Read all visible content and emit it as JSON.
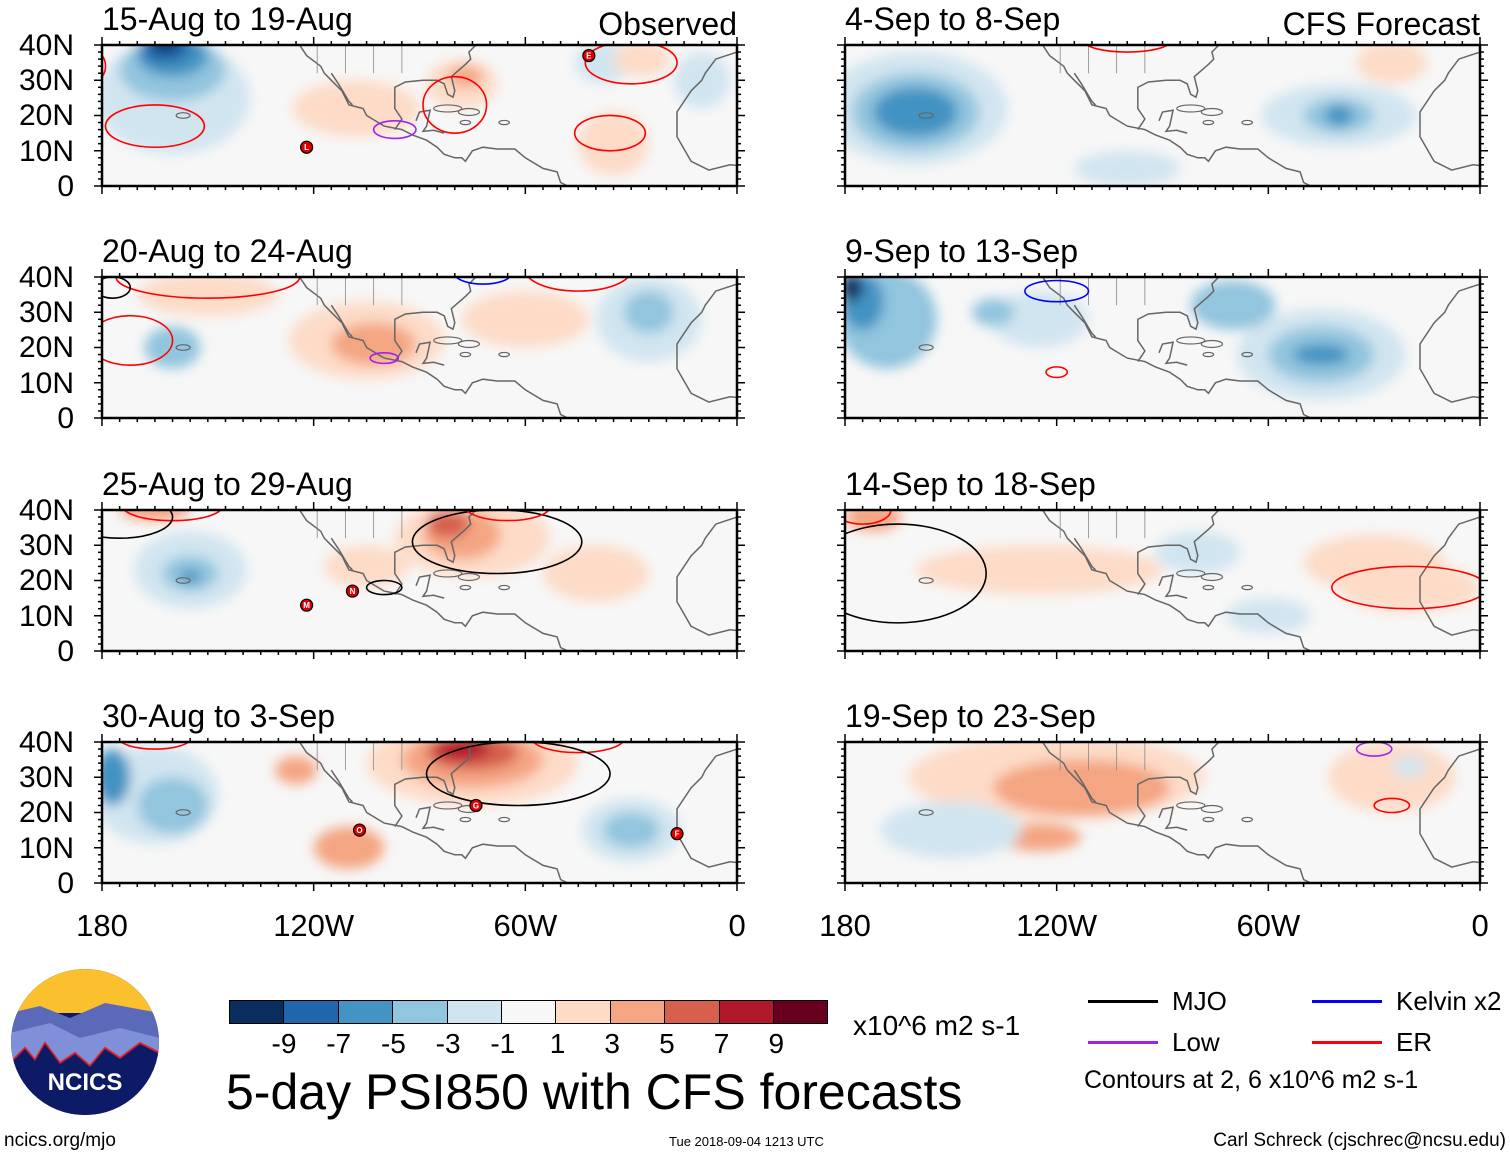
{
  "panels": [
    {
      "title": "15-Aug to 19-Aug",
      "tag": "Observed",
      "storms": [
        "L",
        "E"
      ]
    },
    {
      "title": "20-Aug to 24-Aug",
      "tag": "",
      "storms": []
    },
    {
      "title": "25-Aug to 29-Aug",
      "tag": "",
      "storms": [
        "M",
        "N"
      ]
    },
    {
      "title": "30-Aug to 3-Sep",
      "tag": "",
      "storms": [
        "O",
        "G",
        "F"
      ]
    },
    {
      "title": "4-Sep to 8-Sep",
      "tag": "CFS Forecast",
      "storms": []
    },
    {
      "title": "9-Sep to 13-Sep",
      "tag": "",
      "storms": []
    },
    {
      "title": "14-Sep to 18-Sep",
      "tag": "",
      "storms": []
    },
    {
      "title": "19-Sep to 23-Sep",
      "tag": "",
      "storms": []
    }
  ],
  "y_ticks": [
    "40N",
    "30N",
    "20N",
    "10N",
    "0"
  ],
  "x_ticks": [
    "180",
    "120W",
    "60W",
    "0"
  ],
  "colorbar": {
    "colors": [
      "#0a2d5e",
      "#2166ac",
      "#4393c3",
      "#92c5de",
      "#d1e5f0",
      "#f7f7f7",
      "#fddbc7",
      "#f4a582",
      "#d6604d",
      "#b2182b",
      "#67001f"
    ],
    "labels": [
      "-9",
      "-7",
      "-5",
      "-3",
      "-1",
      "1",
      "3",
      "5",
      "7",
      "9"
    ],
    "units": "x10^6 m2 s-1"
  },
  "legend": [
    {
      "label": "MJO",
      "color": "#000000"
    },
    {
      "label": "Kelvin x2",
      "color": "#0000ff"
    },
    {
      "label": "Low",
      "color": "#a020f0"
    },
    {
      "label": "ER",
      "color": "#ff0000"
    }
  ],
  "contour_note": "Contours at 2, 6 x10^6 m2 s-1",
  "main_title": "5-day PSI850 with CFS forecasts",
  "logo_text": "NCICS",
  "footer": {
    "left": "ncics.org/mjo",
    "center": "Tue 2018-09-04 1213 UTC",
    "right": "Carl Schreck (cjschrec@ncsu.edu)"
  }
}
